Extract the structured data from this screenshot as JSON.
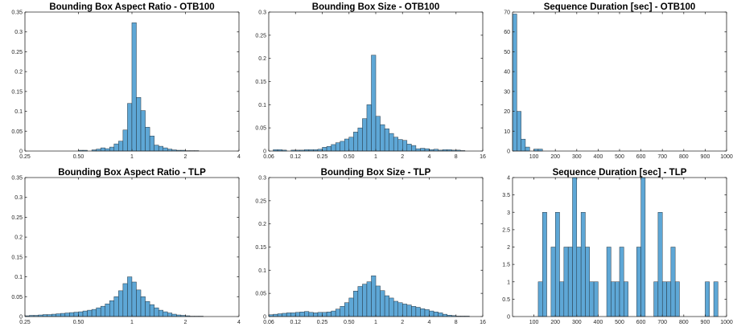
{
  "chart_data": [
    {
      "type": "bar",
      "title": "Bounding Box Aspect Ratio - OTB100",
      "xscale": "log2",
      "xlim": [
        0.25,
        4
      ],
      "ylim": [
        0,
        0.35
      ],
      "xticks": [
        0.25,
        0.5,
        1,
        2,
        4
      ],
      "xtick_labels": [
        "0.25",
        "0.50",
        "1",
        "2",
        "4"
      ],
      "yticks": [
        0,
        0.05,
        0.1,
        0.15,
        0.2,
        0.25,
        0.3,
        0.35
      ],
      "ytick_labels": [
        "0",
        "0.05",
        "0.1",
        "0.15",
        "0.2",
        "0.25",
        "0.3",
        "0.35"
      ],
      "bin_edges_start": 0.25,
      "bin_width_log2": 0.0833,
      "values": [
        0,
        0,
        0,
        0,
        0,
        0,
        0,
        0,
        0,
        0,
        0,
        0,
        0.002,
        0.002,
        0,
        0.003,
        0.005,
        0.008,
        0.006,
        0.01,
        0.018,
        0.025,
        0.053,
        0.12,
        0.323,
        0.135,
        0.102,
        0.06,
        0.038,
        0.015,
        0.012,
        0.008,
        0.005,
        0.003,
        0.002,
        0.002,
        0.001,
        0.001,
        0.001,
        0,
        0,
        0,
        0,
        0,
        0,
        0,
        0,
        0
      ]
    },
    {
      "type": "bar",
      "title": "Bounding Box Size - OTB100",
      "xscale": "log2",
      "xlim": [
        0.0625,
        16
      ],
      "ylim": [
        0,
        0.3
      ],
      "xticks": [
        0.0625,
        0.125,
        0.25,
        0.5,
        1,
        2,
        4,
        8,
        16
      ],
      "xtick_labels": [
        "0.06",
        "0.12",
        "0.25",
        "0.50",
        "1",
        "2",
        "4",
        "8",
        "16"
      ],
      "yticks": [
        0,
        0.05,
        0.1,
        0.15,
        0.2,
        0.25,
        0.3
      ],
      "ytick_labels": [
        "0",
        "0.05",
        "0.1",
        "0.15",
        "0.2",
        "0.25",
        "0.3"
      ],
      "bin_edges_start": 0.0625,
      "bin_width_log2": 0.1667,
      "values": [
        0,
        0.003,
        0.003,
        0.002,
        0,
        0.002,
        0.002,
        0.002,
        0.003,
        0.003,
        0.003,
        0.004,
        0.008,
        0.01,
        0.014,
        0.018,
        0.021,
        0.026,
        0.03,
        0.041,
        0.05,
        0.07,
        0.1,
        0.207,
        0.075,
        0.057,
        0.048,
        0.038,
        0.03,
        0.025,
        0.023,
        0.015,
        0.012,
        0.005,
        0.006,
        0.005,
        0.003,
        0.004,
        0.002,
        0.003,
        0.003,
        0.002,
        0.002,
        0.001,
        0,
        0,
        0,
        0
      ]
    },
    {
      "type": "bar",
      "title": "Sequence Duration [sec] - OTB100",
      "xlim": [
        0,
        1000
      ],
      "ylim": [
        0,
        70
      ],
      "xticks": [
        100,
        200,
        300,
        400,
        500,
        600,
        700,
        800,
        900,
        1000
      ],
      "xtick_labels": [
        "100",
        "200",
        "300",
        "400",
        "500",
        "600",
        "700",
        "800",
        "900",
        "1000"
      ],
      "yticks": [
        0,
        10,
        20,
        30,
        40,
        50,
        60,
        70
      ],
      "ytick_labels": [
        "0",
        "10",
        "20",
        "30",
        "40",
        "50",
        "60",
        "70"
      ],
      "bin_edges_start": 0,
      "bin_width": 20,
      "values": [
        69,
        20,
        6,
        2,
        0,
        1,
        1
      ]
    },
    {
      "type": "bar",
      "title": "Bounding Box Aspect Ratio - TLP",
      "xscale": "log2",
      "xlim": [
        0.25,
        4
      ],
      "ylim": [
        0,
        0.35
      ],
      "xticks": [
        0.25,
        0.5,
        1,
        2,
        4
      ],
      "xtick_labels": [
        "0.25",
        "0.50",
        "1",
        "2",
        "4"
      ],
      "yticks": [
        0,
        0.05,
        0.1,
        0.15,
        0.2,
        0.25,
        0.3,
        0.35
      ],
      "ytick_labels": [
        "0",
        "0.05",
        "0.1",
        "0.15",
        "0.2",
        "0.25",
        "0.3",
        "0.35"
      ],
      "bin_edges_start": 0.25,
      "bin_width_log2": 0.0833,
      "values": [
        0.002,
        0.003,
        0.003,
        0.004,
        0.005,
        0.005,
        0.006,
        0.007,
        0.008,
        0.009,
        0.01,
        0.011,
        0.012,
        0.014,
        0.016,
        0.018,
        0.022,
        0.026,
        0.032,
        0.04,
        0.05,
        0.065,
        0.083,
        0.1,
        0.087,
        0.067,
        0.05,
        0.038,
        0.03,
        0.022,
        0.016,
        0.012,
        0.009,
        0.006,
        0.004,
        0.003,
        0.002,
        0.001,
        0.001,
        0.001,
        0,
        0,
        0,
        0,
        0,
        0,
        0,
        0
      ]
    },
    {
      "type": "bar",
      "title": "Bounding Box Size - TLP",
      "xscale": "log2",
      "xlim": [
        0.0625,
        16
      ],
      "ylim": [
        0,
        0.3
      ],
      "xticks": [
        0.0625,
        0.125,
        0.25,
        0.5,
        1,
        2,
        4,
        8,
        16
      ],
      "xtick_labels": [
        "0.06",
        "0.12",
        "0.25",
        "0.50",
        "1",
        "2",
        "4",
        "8",
        "16"
      ],
      "yticks": [
        0,
        0.05,
        0.1,
        0.15,
        0.2,
        0.25,
        0.3
      ],
      "ytick_labels": [
        "0",
        "0.05",
        "0.1",
        "0.15",
        "0.2",
        "0.25",
        "0.3"
      ],
      "bin_edges_start": 0.0625,
      "bin_width_log2": 0.1667,
      "values": [
        0.004,
        0.005,
        0.006,
        0.007,
        0.008,
        0.008,
        0.009,
        0.01,
        0.011,
        0.009,
        0.008,
        0.009,
        0.009,
        0.01,
        0.012,
        0.016,
        0.022,
        0.03,
        0.04,
        0.055,
        0.065,
        0.07,
        0.075,
        0.088,
        0.066,
        0.056,
        0.045,
        0.04,
        0.033,
        0.03,
        0.027,
        0.025,
        0.022,
        0.02,
        0.017,
        0.015,
        0.012,
        0.01,
        0.008,
        0.005,
        0.003,
        0.002,
        0.001,
        0.001,
        0.001,
        0,
        0,
        0
      ]
    },
    {
      "type": "bar",
      "title": "Sequence Duration [sec] - TLP",
      "xlim": [
        0,
        1000
      ],
      "ylim": [
        0,
        4
      ],
      "xticks": [
        100,
        200,
        300,
        400,
        500,
        600,
        700,
        800,
        900,
        1000
      ],
      "xtick_labels": [
        "100",
        "200",
        "300",
        "400",
        "500",
        "600",
        "700",
        "800",
        "900",
        "1000"
      ],
      "yticks": [
        0,
        0.5,
        1,
        1.5,
        2,
        2.5,
        3,
        3.5,
        4
      ],
      "ytick_labels": [
        "0",
        "0.5",
        "1",
        "1.5",
        "2",
        "2.5",
        "3",
        "3.5",
        "4"
      ],
      "bin_edges_start": 0,
      "bin_width": 20,
      "values": [
        0,
        0,
        0,
        0,
        0,
        0,
        1,
        3,
        0,
        2,
        3,
        1,
        2,
        2,
        4,
        2,
        3,
        2,
        1,
        1,
        0,
        0,
        2,
        1,
        1,
        2,
        1,
        0,
        0,
        2,
        4,
        0,
        0,
        1,
        3,
        1,
        1,
        2,
        1,
        0,
        0,
        0,
        0,
        0,
        0,
        1,
        0,
        1,
        0,
        0
      ]
    }
  ]
}
